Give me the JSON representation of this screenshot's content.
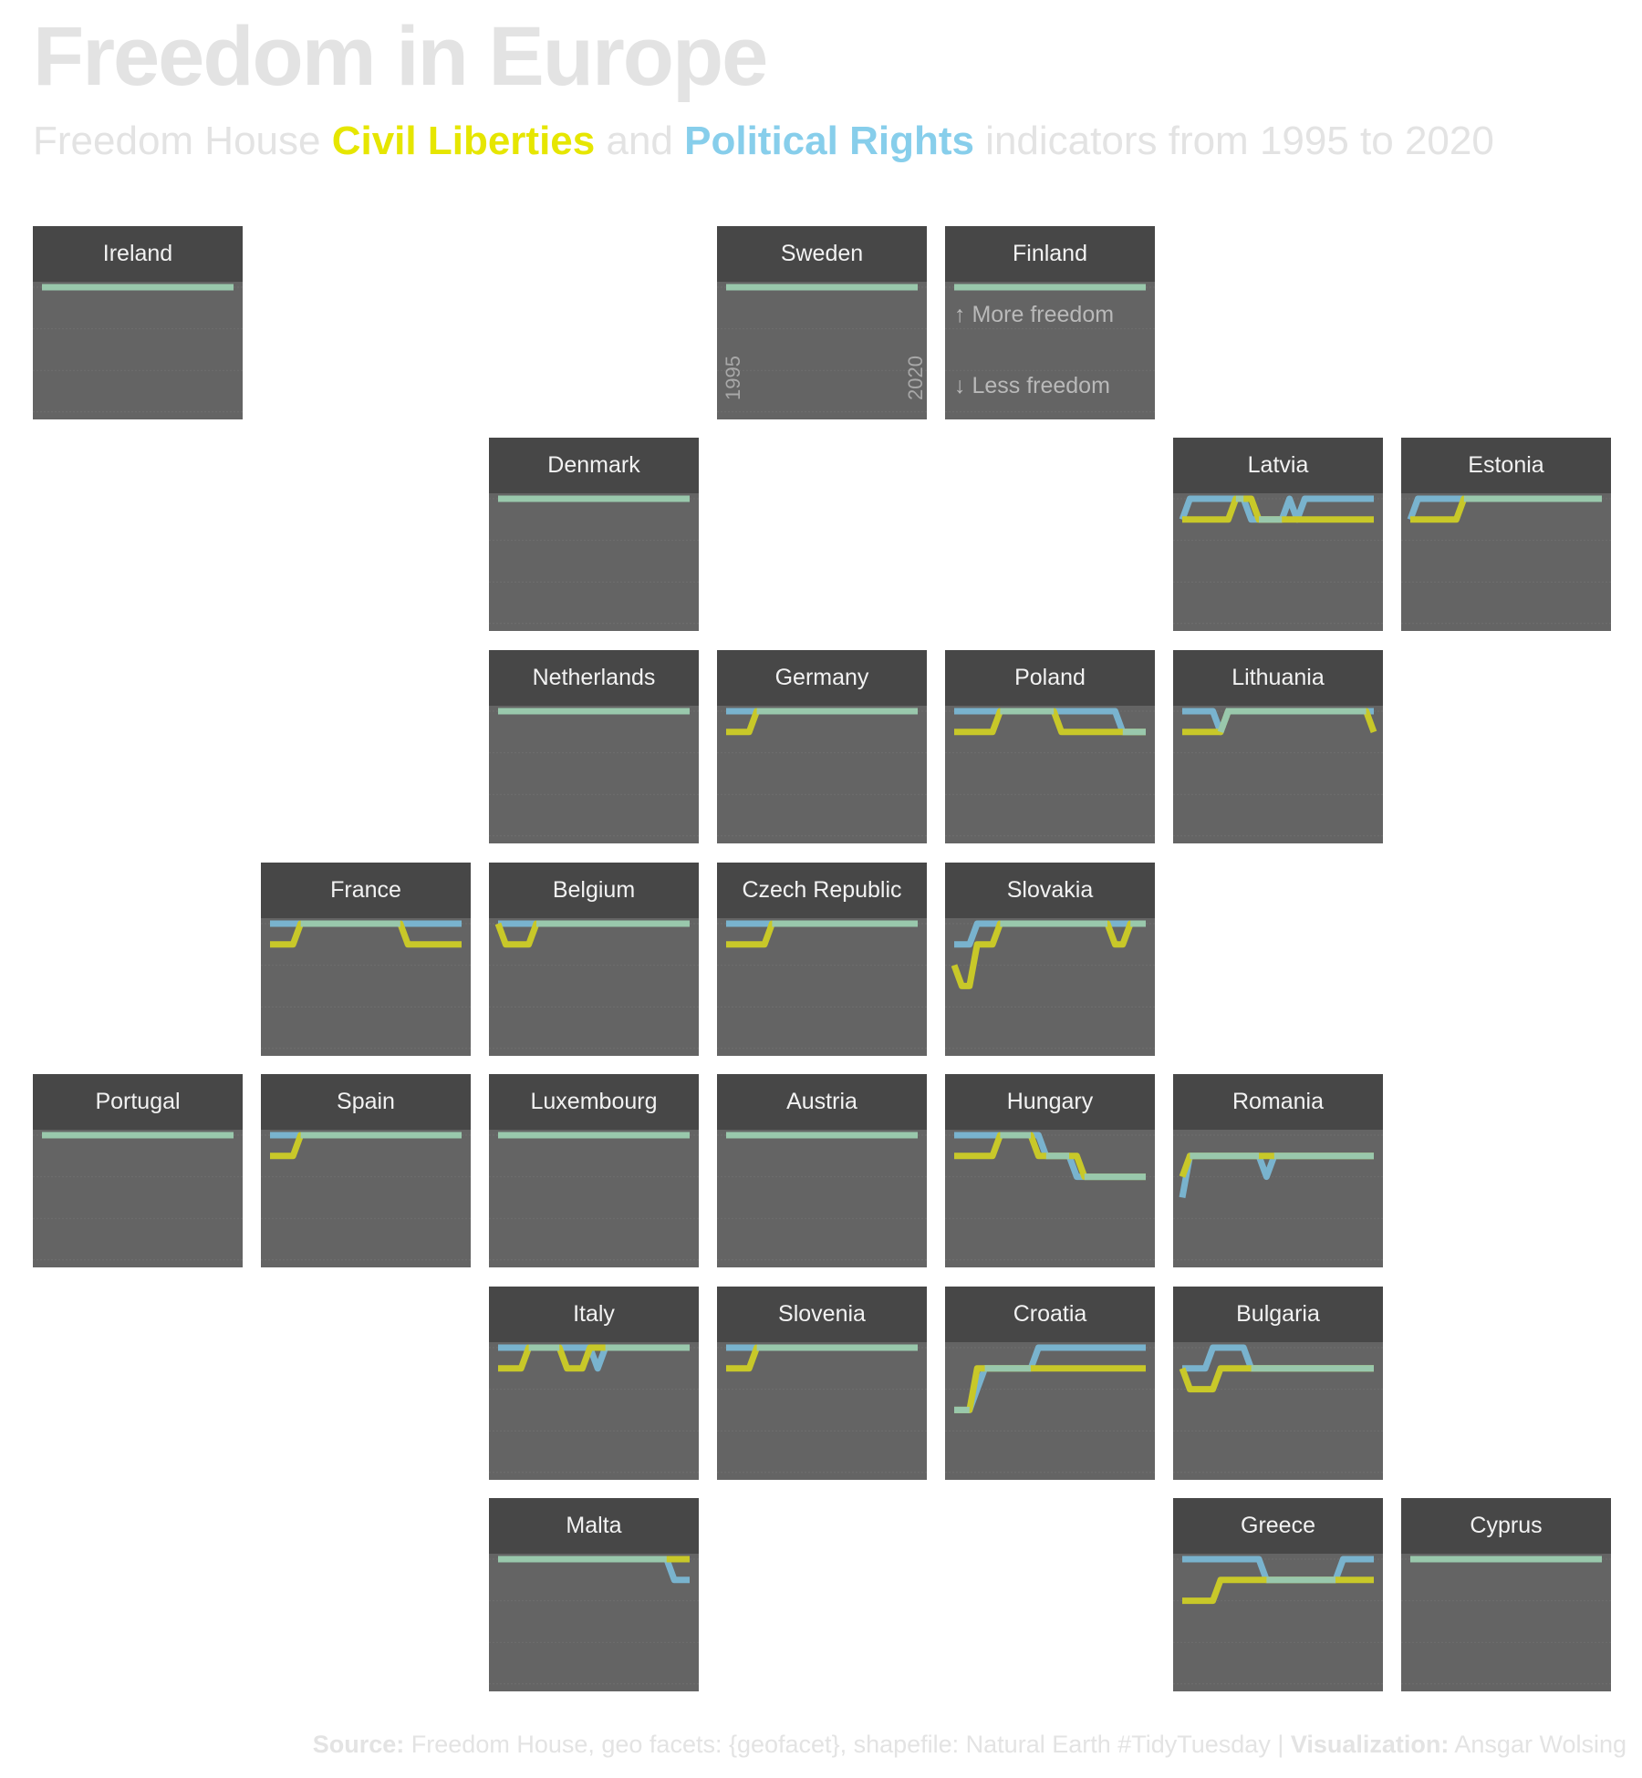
{
  "title": "Freedom in Europe",
  "subtitle": {
    "pre": "Freedom House ",
    "cl": "Civil Liberties",
    "mid": " and ",
    "pr": "Political Rights",
    "post": " indicators from 1995 to 2020"
  },
  "caption": {
    "source_label": "Source:",
    "source_text": " Freedom House, geo facets: {geofacet}, shapefile: Natural Earth #TidyTuesday | ",
    "viz_label": "Visualization:",
    "viz_text": " Ansgar Wolsing"
  },
  "colors": {
    "civil_liberties": "#c8c829",
    "political_rights": "#79b3ce",
    "overlap": "#99c8ac",
    "tile_header": "#474747",
    "tile_body": "#646464"
  },
  "legend_tile": {
    "country": "Finland",
    "more": "↑ More freedom",
    "less": "↓ Less freedom"
  },
  "axis_tile": {
    "country": "Sweden",
    "start_year": "1995",
    "end_year": "2020"
  },
  "chart_data": {
    "type": "line",
    "title": "Freedom in Europe",
    "x_range": [
      1995,
      2020
    ],
    "y_range": [
      1,
      7
    ],
    "y_note": "score 1 = most free (top), 7 = least free",
    "series_names": [
      "Civil Liberties",
      "Political Rights"
    ],
    "countries": [
      {
        "name": "Ireland",
        "cl": [
          [
            1995,
            1
          ],
          [
            2020,
            1
          ]
        ],
        "pr": [
          [
            1995,
            1
          ],
          [
            2020,
            1
          ]
        ]
      },
      {
        "name": "Sweden",
        "cl": [
          [
            1995,
            1
          ],
          [
            2020,
            1
          ]
        ],
        "pr": [
          [
            1995,
            1
          ],
          [
            2020,
            1
          ]
        ]
      },
      {
        "name": "Finland",
        "cl": [
          [
            1995,
            1
          ],
          [
            2020,
            1
          ]
        ],
        "pr": [
          [
            1995,
            1
          ],
          [
            2020,
            1
          ]
        ]
      },
      {
        "name": "Denmark",
        "cl": [
          [
            1995,
            1
          ],
          [
            2020,
            1
          ]
        ],
        "pr": [
          [
            1995,
            1
          ],
          [
            2020,
            1
          ]
        ]
      },
      {
        "name": "Latvia",
        "cl": [
          [
            1995,
            2
          ],
          [
            2001,
            2
          ],
          [
            2002,
            1
          ],
          [
            2004,
            1
          ],
          [
            2005,
            2
          ],
          [
            2020,
            2
          ]
        ],
        "pr": [
          [
            1995,
            2
          ],
          [
            1996,
            1
          ],
          [
            2002,
            1
          ],
          [
            2003,
            1
          ],
          [
            2004,
            2
          ],
          [
            2008,
            2
          ],
          [
            2009,
            1
          ],
          [
            2010,
            2
          ],
          [
            2011,
            1
          ],
          [
            2020,
            1
          ]
        ]
      },
      {
        "name": "Estonia",
        "cl": [
          [
            1995,
            2
          ],
          [
            2001,
            2
          ],
          [
            2002,
            1
          ],
          [
            2020,
            1
          ]
        ],
        "pr": [
          [
            1995,
            2
          ],
          [
            1996,
            1
          ],
          [
            2020,
            1
          ]
        ]
      },
      {
        "name": "Netherlands",
        "cl": [
          [
            1995,
            1
          ],
          [
            2020,
            1
          ]
        ],
        "pr": [
          [
            1995,
            1
          ],
          [
            2020,
            1
          ]
        ]
      },
      {
        "name": "Germany",
        "cl": [
          [
            1995,
            2
          ],
          [
            1998,
            2
          ],
          [
            1999,
            1
          ],
          [
            2020,
            1
          ]
        ],
        "pr": [
          [
            1995,
            1
          ],
          [
            2020,
            1
          ]
        ]
      },
      {
        "name": "Poland",
        "cl": [
          [
            1995,
            2
          ],
          [
            2000,
            2
          ],
          [
            2001,
            1
          ],
          [
            2008,
            1
          ],
          [
            2009,
            2
          ],
          [
            2020,
            2
          ]
        ],
        "pr": [
          [
            1995,
            1
          ],
          [
            2007,
            1
          ],
          [
            2008,
            1
          ],
          [
            2015,
            1
          ],
          [
            2016,
            1
          ],
          [
            2017,
            2
          ],
          [
            2020,
            2
          ]
        ]
      },
      {
        "name": "Lithuania",
        "cl": [
          [
            1995,
            2
          ],
          [
            2000,
            2
          ],
          [
            2001,
            1
          ],
          [
            2019,
            1
          ],
          [
            2020,
            2
          ]
        ],
        "pr": [
          [
            1995,
            1
          ],
          [
            1999,
            1
          ],
          [
            2000,
            2
          ],
          [
            2001,
            1
          ],
          [
            2020,
            1
          ]
        ]
      },
      {
        "name": "France",
        "cl": [
          [
            1995,
            2
          ],
          [
            1998,
            2
          ],
          [
            1999,
            1
          ],
          [
            2012,
            1
          ],
          [
            2013,
            2
          ],
          [
            2020,
            2
          ]
        ],
        "pr": [
          [
            1995,
            1
          ],
          [
            2020,
            1
          ]
        ]
      },
      {
        "name": "Belgium",
        "cl": [
          [
            1995,
            1
          ],
          [
            1996,
            2
          ],
          [
            1999,
            2
          ],
          [
            2000,
            1
          ],
          [
            2020,
            1
          ]
        ],
        "pr": [
          [
            1995,
            1
          ],
          [
            2020,
            1
          ]
        ]
      },
      {
        "name": "Czech Republic",
        "cl": [
          [
            1995,
            2
          ],
          [
            2000,
            2
          ],
          [
            2001,
            1
          ],
          [
            2020,
            1
          ]
        ],
        "pr": [
          [
            1995,
            1
          ],
          [
            2020,
            1
          ]
        ]
      },
      {
        "name": "Slovakia",
        "cl": [
          [
            1995,
            3
          ],
          [
            1996,
            4
          ],
          [
            1997,
            4
          ],
          [
            1998,
            2
          ],
          [
            2000,
            2
          ],
          [
            2001,
            1
          ],
          [
            2014,
            1
          ],
          [
            2015,
            1
          ],
          [
            2016,
            2
          ],
          [
            2017,
            2
          ],
          [
            2018,
            1
          ],
          [
            2020,
            1
          ]
        ],
        "pr": [
          [
            1995,
            2
          ],
          [
            1997,
            2
          ],
          [
            1998,
            1
          ],
          [
            2020,
            1
          ]
        ]
      },
      {
        "name": "Portugal",
        "cl": [
          [
            1995,
            1
          ],
          [
            2020,
            1
          ]
        ],
        "pr": [
          [
            1995,
            1
          ],
          [
            2020,
            1
          ]
        ]
      },
      {
        "name": "Spain",
        "cl": [
          [
            1995,
            2
          ],
          [
            1998,
            2
          ],
          [
            1999,
            1
          ],
          [
            2020,
            1
          ]
        ],
        "pr": [
          [
            1995,
            1
          ],
          [
            2020,
            1
          ]
        ]
      },
      {
        "name": "Luxembourg",
        "cl": [
          [
            1995,
            1
          ],
          [
            2020,
            1
          ]
        ],
        "pr": [
          [
            1995,
            1
          ],
          [
            2020,
            1
          ]
        ]
      },
      {
        "name": "Austria",
        "cl": [
          [
            1995,
            1
          ],
          [
            2020,
            1
          ]
        ],
        "pr": [
          [
            1995,
            1
          ],
          [
            2020,
            1
          ]
        ]
      },
      {
        "name": "Hungary",
        "cl": [
          [
            1995,
            2
          ],
          [
            2000,
            2
          ],
          [
            2001,
            1
          ],
          [
            2005,
            1
          ],
          [
            2006,
            2
          ],
          [
            2009,
            2
          ],
          [
            2011,
            2
          ],
          [
            2012,
            3
          ],
          [
            2020,
            3
          ]
        ],
        "pr": [
          [
            1995,
            1
          ],
          [
            2005,
            1
          ],
          [
            2006,
            1
          ],
          [
            2007,
            2
          ],
          [
            2009,
            2
          ],
          [
            2010,
            2
          ],
          [
            2011,
            3
          ],
          [
            2020,
            3
          ]
        ]
      },
      {
        "name": "Romania",
        "cl": [
          [
            1995,
            3
          ],
          [
            1996,
            2
          ],
          [
            2005,
            2
          ],
          [
            2006,
            2
          ],
          [
            2020,
            2
          ]
        ],
        "pr": [
          [
            1995,
            4
          ],
          [
            1996,
            2
          ],
          [
            2005,
            2
          ],
          [
            2006,
            3
          ],
          [
            2007,
            2
          ],
          [
            2020,
            2
          ]
        ]
      },
      {
        "name": "Italy",
        "cl": [
          [
            1995,
            2
          ],
          [
            1998,
            2
          ],
          [
            1999,
            1
          ],
          [
            2003,
            1
          ],
          [
            2004,
            2
          ],
          [
            2006,
            2
          ],
          [
            2007,
            1
          ],
          [
            2020,
            1
          ]
        ],
        "pr": [
          [
            1995,
            1
          ],
          [
            2006,
            1
          ],
          [
            2007,
            1
          ],
          [
            2008,
            2
          ],
          [
            2009,
            1
          ],
          [
            2020,
            1
          ]
        ]
      },
      {
        "name": "Slovenia",
        "cl": [
          [
            1995,
            2
          ],
          [
            1998,
            2
          ],
          [
            1999,
            1
          ],
          [
            2020,
            1
          ]
        ],
        "pr": [
          [
            1995,
            1
          ],
          [
            2020,
            1
          ]
        ]
      },
      {
        "name": "Croatia",
        "cl": [
          [
            1995,
            4
          ],
          [
            1997,
            4
          ],
          [
            1998,
            2
          ],
          [
            2020,
            2
          ]
        ],
        "pr": [
          [
            1995,
            4
          ],
          [
            1997,
            4
          ],
          [
            1998,
            3
          ],
          [
            1999,
            2
          ],
          [
            2005,
            2
          ],
          [
            2006,
            1
          ],
          [
            2020,
            1
          ]
        ]
      },
      {
        "name": "Bulgaria",
        "cl": [
          [
            1995,
            2
          ],
          [
            1996,
            3
          ],
          [
            1999,
            3
          ],
          [
            2000,
            2
          ],
          [
            2020,
            2
          ]
        ],
        "pr": [
          [
            1995,
            2
          ],
          [
            1998,
            2
          ],
          [
            1999,
            1
          ],
          [
            2003,
            1
          ],
          [
            2004,
            2
          ],
          [
            2020,
            2
          ]
        ]
      },
      {
        "name": "Malta",
        "cl": [
          [
            1995,
            1
          ],
          [
            2018,
            1
          ],
          [
            2019,
            1
          ],
          [
            2020,
            1
          ]
        ],
        "pr": [
          [
            1995,
            1
          ],
          [
            2017,
            1
          ],
          [
            2018,
            2
          ],
          [
            2020,
            2
          ]
        ]
      },
      {
        "name": "Greece",
        "cl": [
          [
            1995,
            3
          ],
          [
            1999,
            3
          ],
          [
            2000,
            2
          ],
          [
            2020,
            2
          ]
        ],
        "pr": [
          [
            1995,
            1
          ],
          [
            2005,
            1
          ],
          [
            2006,
            2
          ],
          [
            2015,
            2
          ],
          [
            2016,
            1
          ],
          [
            2020,
            1
          ]
        ]
      },
      {
        "name": "Cyprus",
        "cl": [
          [
            1995,
            1
          ],
          [
            2020,
            1
          ]
        ],
        "pr": [
          [
            1995,
            1
          ],
          [
            2020,
            1
          ]
        ]
      }
    ]
  }
}
